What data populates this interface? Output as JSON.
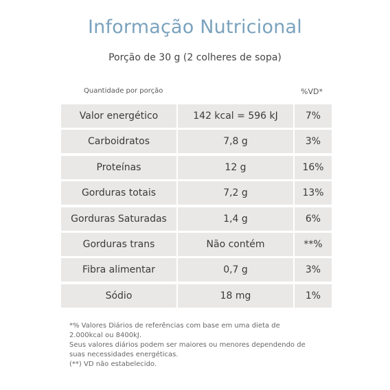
{
  "header": {
    "title": "Informação Nutricional",
    "serving": "Porção de 30 g (2 colheres de sopa)"
  },
  "table": {
    "col_left_header": "Quantidade por porção",
    "col_right_header": "%VD*",
    "rows": [
      {
        "name": "Valor energético",
        "amount": "142 kcal = 596 kJ",
        "dv": "7%"
      },
      {
        "name": "Carboidratos",
        "amount": "7,8 g",
        "dv": "3%"
      },
      {
        "name": "Proteínas",
        "amount": "12 g",
        "dv": "16%"
      },
      {
        "name": "Gorduras totais",
        "amount": "7,2 g",
        "dv": "13%"
      },
      {
        "name": "Gorduras Saturadas",
        "amount": "1,4 g",
        "dv": "6%"
      },
      {
        "name": "Gorduras trans",
        "amount": "Não contém",
        "dv": "**%"
      },
      {
        "name": "Fibra alimentar",
        "amount": "0,7 g",
        "dv": "3%"
      },
      {
        "name": "Sódio",
        "amount": "18 mg",
        "dv": "1%"
      }
    ]
  },
  "footnotes": {
    "line1": "*% Valores Diários de referências com base em uma dieta de 2.000kcal ou 8400kJ.",
    "line2": "Seus valores diários podem ser maiores ou menores dependendo de suas necessidades energéticas.",
    "line3": "(**) VD não estabelecido."
  }
}
